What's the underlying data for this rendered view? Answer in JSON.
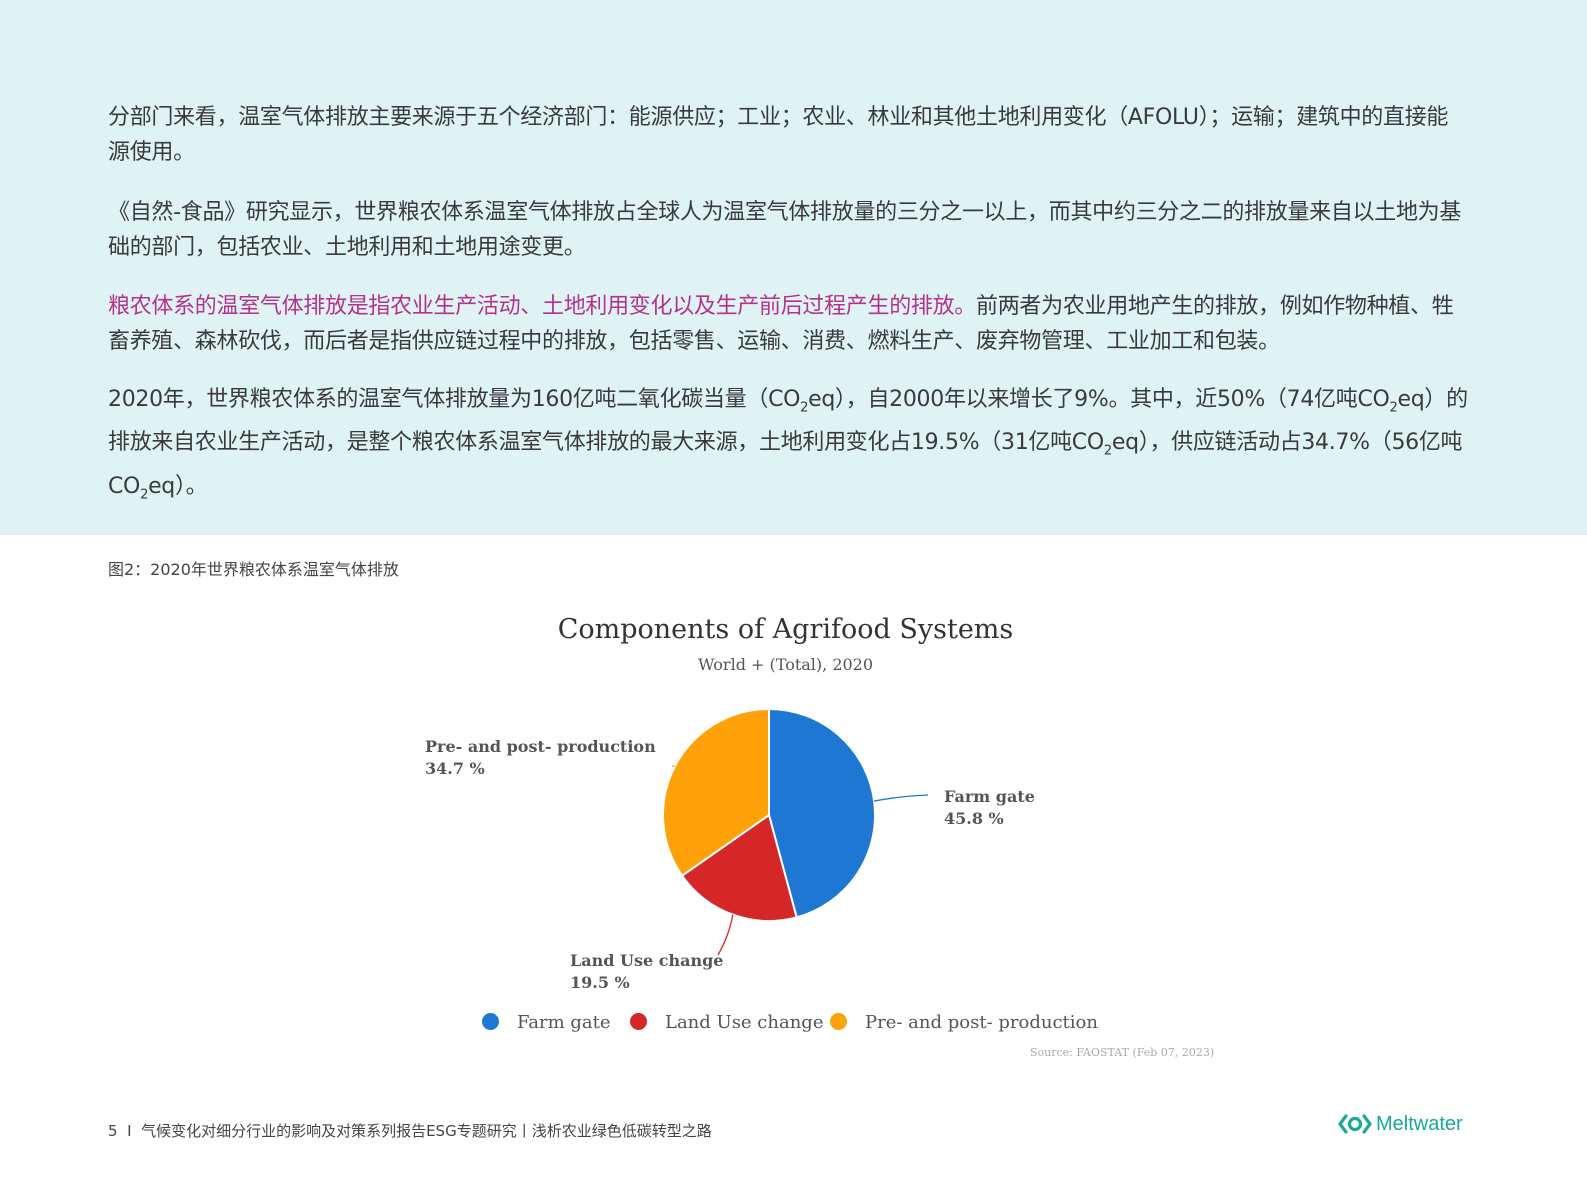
{
  "paragraphs": {
    "p1": "分部门来看，温室气体排放主要来源于五个经济部门：能源供应；工业；农业、林业和其他土地利用变化（AFOLU）；运输；建筑中的直接能源使用。",
    "p2": "《自然-食品》研究显示，世界粮农体系温室气体排放占全球人为温室气体排放量的三分之一以上，而其中约三分之二的排放量来自以土地为基础的部门，包括农业、土地利用和土地用途变更。",
    "p3_highlight": "粮农体系的温室气体排放是指农业生产活动、土地利用变化以及生产前后过程产生的排放。",
    "p3_rest": "前两者为农业用地产生的排放，例如作物种植、牲畜养殖、森林砍伐，而后者是指供应链过程中的排放，包括零售、运输、消费、燃料生产、废弃物管理、工业加工和包装。",
    "p4_a": "2020年，世界粮农体系的温室气体排放量为160亿吨二氧化碳当量（CO",
    "p4_b": "eq），自2000年以来增长了9%。其中，近50%（74亿吨CO",
    "p4_c": "eq）的排放来自农业生产活动，是整个粮农体系温室气体排放的最大来源，土地利用变化占19.5%（31亿吨CO",
    "p4_d": "eq），供应链活动占34.7%（56亿吨CO",
    "p4_e": "eq）。",
    "sub2": "2"
  },
  "figure_caption": "图2：2020年世界粮农体系温室气体排放",
  "chart_data": {
    "type": "pie",
    "title": "Components of Agrifood Systems",
    "subtitle": "World + (Total), 2020",
    "slices": [
      {
        "name": "Farm gate",
        "value": 45.8,
        "label": "45.8 %",
        "color": "#1f77d4"
      },
      {
        "name": "Land Use change",
        "value": 19.5,
        "label": "19.5 %",
        "color": "#d62728"
      },
      {
        "name": "Pre- and post- production",
        "value": 34.7,
        "label": "34.7 %",
        "color": "#ffa20a"
      }
    ],
    "legend": {
      "placement": "bottom",
      "items": [
        "Farm gate",
        "Land Use change",
        "Pre- and post- production"
      ]
    },
    "source": "Source: FAOSTAT (Feb 07, 2023)"
  },
  "footer": {
    "page_number": "5",
    "separator": "I",
    "text": "气候变化对细分行业的影响及对策系列报告ESG专题研究丨浅析农业绿色低碳转型之路"
  },
  "brand": {
    "name": "Meltwater",
    "icon": "meltwater-logo-icon",
    "color": "#1aa89b"
  }
}
